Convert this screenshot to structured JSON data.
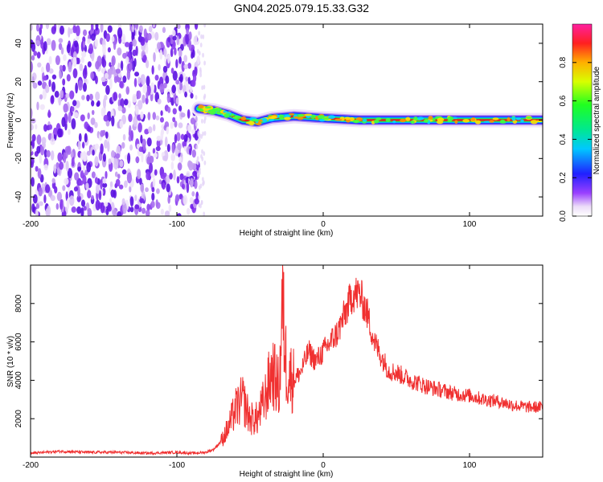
{
  "title": "GN04.2025.079.15.33.G32",
  "chart_data": [
    {
      "type": "heatmap",
      "xlabel": "Height of straight line (km)",
      "ylabel": "Frequency (Hz)",
      "xlim": [
        -200,
        150
      ],
      "ylim": [
        -50,
        50
      ],
      "x_ticks": [
        "-200",
        "-100",
        "0",
        "100"
      ],
      "y_ticks": [
        "-40",
        "-20",
        "0",
        "20",
        "40"
      ],
      "noise_region_x": [
        -200,
        -85
      ],
      "signal_trace": [
        {
          "x": -85,
          "y": 6
        },
        {
          "x": -75,
          "y": 5
        },
        {
          "x": -65,
          "y": 3
        },
        {
          "x": -55,
          "y": 0
        },
        {
          "x": -45,
          "y": -1
        },
        {
          "x": -35,
          "y": 1
        },
        {
          "x": -20,
          "y": 2
        },
        {
          "x": 0,
          "y": 1
        },
        {
          "x": 25,
          "y": 0
        },
        {
          "x": 60,
          "y": 0
        },
        {
          "x": 100,
          "y": 0
        },
        {
          "x": 150,
          "y": 0
        }
      ],
      "colorbar": {
        "label": "Normalized spectral amplitude",
        "range": [
          0,
          1
        ],
        "ticks": [
          "0.0",
          "0.2",
          "0.4",
          "0.6",
          "0.8"
        ]
      },
      "grid": false
    },
    {
      "type": "line",
      "xlabel": "Height of straight line (km)",
      "ylabel": "SNR (10 * v/v)",
      "xlim": [
        -200,
        150
      ],
      "ylim": [
        0,
        10000
      ],
      "x_ticks": [
        "-200",
        "-100",
        "0",
        "100"
      ],
      "y_ticks": [
        "2000",
        "4000",
        "6000",
        "8000"
      ],
      "color": "#f03030",
      "series": [
        {
          "x": [
            -200,
            -180,
            -160,
            -140,
            -120,
            -100,
            -90,
            -80,
            -75,
            -70,
            -65,
            -60,
            -55,
            -50,
            -45,
            -40,
            -35,
            -30,
            -28,
            -25,
            -20,
            -15,
            -10,
            -5,
            0,
            5,
            10,
            15,
            20,
            25,
            30,
            35,
            40,
            45,
            50,
            60,
            70,
            80,
            90,
            100,
            110,
            120,
            130,
            140,
            150
          ],
          "y": [
            200,
            300,
            250,
            250,
            200,
            250,
            200,
            250,
            400,
            800,
            1500,
            2500,
            3000,
            2000,
            2000,
            3000,
            4500,
            3500,
            8000,
            4500,
            4000,
            4500,
            5500,
            5000,
            5500,
            6000,
            6500,
            7500,
            8500,
            8500,
            7500,
            6000,
            5200,
            4500,
            4400,
            4000,
            3700,
            3500,
            3300,
            3200,
            3000,
            2900,
            2700,
            2600,
            2600
          ]
        }
      ],
      "grid": false
    }
  ]
}
